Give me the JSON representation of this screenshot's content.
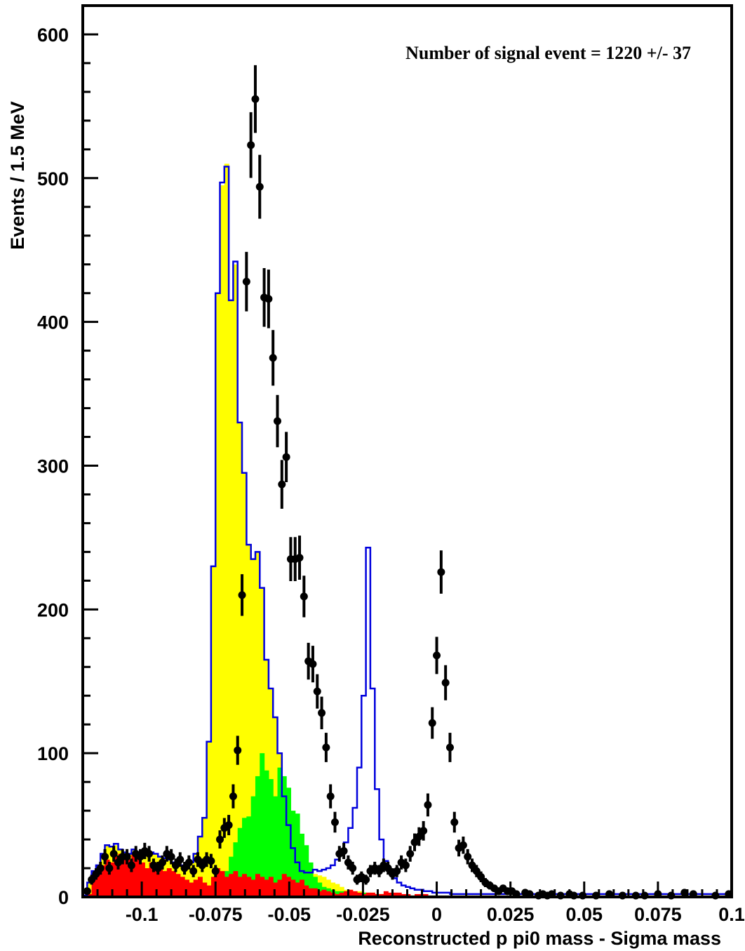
{
  "chart_data": {
    "type": "bar",
    "title": "",
    "xlabel": "Reconstructed p pi0 mass - Sigma mass",
    "ylabel": "Events / 1.5 MeV",
    "xlim": [
      -0.12,
      0.1
    ],
    "ylim": [
      0,
      620
    ],
    "x_ticks": [
      {
        "value": -0.1,
        "label": "-0.1"
      },
      {
        "value": -0.075,
        "label": "-0.075"
      },
      {
        "value": -0.05,
        "label": "-0.05"
      },
      {
        "value": -0.025,
        "label": "-0.025"
      },
      {
        "value": 0,
        "label": "0"
      },
      {
        "value": 0.025,
        "label": "0.025"
      },
      {
        "value": 0.05,
        "label": "0.05"
      },
      {
        "value": 0.075,
        "label": "0.075"
      },
      {
        "value": 0.1,
        "label": "0.1"
      }
    ],
    "y_ticks": [
      {
        "value": 0,
        "label": "0"
      },
      {
        "value": 100,
        "label": "100"
      },
      {
        "value": 200,
        "label": "200"
      },
      {
        "value": 300,
        "label": "300"
      },
      {
        "value": 400,
        "label": "400"
      },
      {
        "value": 500,
        "label": "500"
      },
      {
        "value": 600,
        "label": "600"
      }
    ],
    "annotation": "Number of signal event = 1220 +/- 37",
    "bin_width": 0.0015,
    "bin_start": -0.12,
    "colors": {
      "red": "#ff0000",
      "green": "#00ff00",
      "yellow": "#ffff00",
      "fit": "#0000dd",
      "data": "#000000"
    },
    "series": [
      {
        "key": "red",
        "values": [
          0,
          2,
          14,
          18,
          22,
          26,
          24,
          28,
          30,
          28,
          26,
          30,
          28,
          24,
          20,
          24,
          22,
          20,
          18,
          20,
          18,
          16,
          14,
          12,
          10,
          12,
          14,
          10,
          8,
          14,
          20,
          18,
          14,
          16,
          18,
          14,
          16,
          14,
          12,
          16,
          14,
          12,
          14,
          10,
          12,
          16,
          14,
          12,
          10,
          12,
          8,
          6,
          6,
          4,
          5,
          4,
          3,
          2,
          3,
          4,
          5,
          4,
          3,
          2,
          3,
          3,
          2,
          2,
          4,
          3,
          3,
          3,
          2,
          2,
          1,
          2,
          2,
          2,
          1,
          1,
          1,
          1,
          1,
          1,
          1,
          1,
          1,
          1,
          1,
          1,
          1,
          1,
          1,
          1,
          1,
          1,
          1,
          1,
          1,
          1,
          1,
          1,
          1,
          1,
          1,
          1,
          1,
          1,
          1,
          1,
          1,
          1,
          1,
          1,
          1,
          1,
          1,
          1,
          1,
          1,
          1,
          1,
          1,
          1,
          1,
          1,
          1,
          1,
          1,
          1,
          1,
          1,
          1,
          1,
          1,
          1,
          1,
          1,
          1,
          1,
          1,
          1,
          1,
          1,
          1,
          1,
          1
        ]
      },
      {
        "key": "green",
        "values": [
          0,
          0,
          0,
          0,
          0,
          0,
          0,
          0,
          0,
          0,
          0,
          0,
          0,
          0,
          0,
          0,
          0,
          0,
          0,
          0,
          0,
          0,
          0,
          0,
          0,
          0,
          0,
          0,
          2,
          4,
          6,
          10,
          18,
          28,
          38,
          48,
          55,
          56,
          70,
          84,
          100,
          88,
          82,
          70,
          90,
          84,
          76,
          60,
          58,
          44,
          36,
          24,
          14,
          10,
          7,
          6,
          5,
          4,
          4,
          4,
          3,
          3,
          3,
          3,
          2,
          2,
          2,
          2,
          2,
          2,
          1,
          1,
          1,
          1,
          1,
          1,
          1,
          1,
          1,
          1,
          1,
          1,
          1,
          1,
          1,
          1,
          1,
          1,
          1,
          1,
          1,
          1,
          1,
          1,
          1,
          1,
          1,
          1,
          1,
          1,
          1,
          1,
          1,
          1,
          1,
          1,
          1,
          1,
          1,
          1,
          1,
          1,
          1,
          1,
          1,
          1,
          1,
          1,
          1,
          1,
          1,
          1,
          1,
          1,
          1,
          1,
          1,
          1,
          1,
          1,
          1,
          1,
          1,
          1,
          1,
          1,
          1,
          1,
          1,
          1,
          1,
          1,
          1,
          1,
          1,
          1,
          1,
          1
        ]
      },
      {
        "key": "yellow",
        "values": [
          0,
          10,
          18,
          22,
          30,
          36,
          35,
          36,
          33,
          31,
          30,
          33,
          31,
          30,
          29,
          31,
          30,
          28,
          27,
          26,
          24,
          23,
          22,
          22,
          24,
          30,
          42,
          55,
          108,
          230,
          420,
          495,
          510,
          415,
          440,
          330,
          295,
          245,
          235,
          240,
          215,
          165,
          145,
          125,
          100,
          70,
          50,
          32,
          20,
          15,
          14,
          14,
          16,
          15,
          14,
          12,
          10,
          9,
          7,
          5,
          5,
          4,
          4,
          3,
          3,
          3,
          2,
          2,
          2,
          2,
          2,
          1,
          1,
          1,
          1,
          1,
          1,
          1,
          1,
          1,
          1,
          1,
          1,
          1,
          1,
          1,
          1,
          1,
          1,
          1,
          1,
          1,
          1,
          1,
          1,
          1,
          1,
          1,
          1,
          1,
          1,
          1,
          1,
          1,
          1,
          1,
          1,
          1,
          1,
          1,
          1,
          1,
          1,
          1,
          1,
          1,
          1,
          1,
          1,
          1,
          1,
          1,
          1,
          1,
          1,
          1,
          1,
          1,
          1,
          1,
          1,
          1,
          1,
          1,
          1,
          1,
          1,
          1,
          1,
          1,
          1,
          1,
          1,
          1,
          1,
          1
        ]
      },
      {
        "key": "fit",
        "values": [
          1,
          10,
          18,
          22,
          30,
          36,
          35,
          37,
          33,
          31,
          30,
          33,
          31,
          30,
          29,
          31,
          30,
          28,
          27,
          26,
          24,
          23,
          22,
          22,
          24,
          30,
          42,
          55,
          108,
          230,
          420,
          497,
          508,
          415,
          442,
          330,
          295,
          245,
          235,
          240,
          215,
          165,
          145,
          125,
          100,
          70,
          50,
          34,
          24,
          18,
          17,
          17,
          19,
          18,
          19,
          20,
          22,
          26,
          31,
          38,
          48,
          62,
          90,
          140,
          243,
          145,
          75,
          40,
          25,
          18,
          13,
          10,
          8,
          7,
          6,
          5,
          5,
          4,
          4,
          3,
          3,
          3,
          3,
          2,
          2,
          2,
          2,
          2,
          2,
          2,
          2,
          2,
          2,
          2,
          2,
          2,
          2,
          2,
          2,
          2,
          2,
          2,
          2,
          2,
          2,
          2,
          2,
          2,
          2,
          2,
          2,
          2,
          2,
          2,
          2,
          2,
          2,
          2,
          2,
          2,
          2,
          2,
          2,
          2,
          2,
          2,
          2,
          2,
          2,
          2,
          2,
          2,
          2,
          2,
          2,
          2,
          2,
          2,
          2,
          2,
          2,
          2,
          2,
          2,
          2,
          2,
          2,
          2
        ]
      }
    ],
    "data_points": [
      {
        "x": -0.1185,
        "y": 4
      },
      {
        "x": -0.117,
        "y": 12
      },
      {
        "x": -0.1155,
        "y": 16
      },
      {
        "x": -0.114,
        "y": 20
      },
      {
        "x": -0.1125,
        "y": 28
      },
      {
        "x": -0.111,
        "y": 20
      },
      {
        "x": -0.1095,
        "y": 30
      },
      {
        "x": -0.108,
        "y": 24
      },
      {
        "x": -0.1065,
        "y": 28
      },
      {
        "x": -0.105,
        "y": 28
      },
      {
        "x": -0.1035,
        "y": 22
      },
      {
        "x": -0.102,
        "y": 30
      },
      {
        "x": -0.1005,
        "y": 28
      },
      {
        "x": -0.099,
        "y": 32
      },
      {
        "x": -0.0975,
        "y": 30
      },
      {
        "x": -0.096,
        "y": 22
      },
      {
        "x": -0.0945,
        "y": 20
      },
      {
        "x": -0.093,
        "y": 24
      },
      {
        "x": -0.0915,
        "y": 30
      },
      {
        "x": -0.09,
        "y": 28
      },
      {
        "x": -0.0885,
        "y": 22
      },
      {
        "x": -0.087,
        "y": 26
      },
      {
        "x": -0.0855,
        "y": 20
      },
      {
        "x": -0.084,
        "y": 24
      },
      {
        "x": -0.0825,
        "y": 18
      },
      {
        "x": -0.081,
        "y": 26
      },
      {
        "x": -0.0795,
        "y": 22
      },
      {
        "x": -0.078,
        "y": 26
      },
      {
        "x": -0.0765,
        "y": 25
      },
      {
        "x": -0.075,
        "y": 18
      },
      {
        "x": -0.0735,
        "y": 40
      },
      {
        "x": -0.072,
        "y": 48
      },
      {
        "x": -0.0705,
        "y": 50
      },
      {
        "x": -0.069,
        "y": 70
      },
      {
        "x": -0.0675,
        "y": 102
      },
      {
        "x": -0.066,
        "y": 210
      },
      {
        "x": -0.0645,
        "y": 428
      },
      {
        "x": -0.063,
        "y": 523
      },
      {
        "x": -0.0615,
        "y": 555
      },
      {
        "x": -0.06,
        "y": 494
      },
      {
        "x": -0.0585,
        "y": 417
      },
      {
        "x": -0.057,
        "y": 416
      },
      {
        "x": -0.0555,
        "y": 375
      },
      {
        "x": -0.054,
        "y": 331
      },
      {
        "x": -0.0525,
        "y": 287
      },
      {
        "x": -0.051,
        "y": 306
      },
      {
        "x": -0.0495,
        "y": 235
      },
      {
        "x": -0.048,
        "y": 235
      },
      {
        "x": -0.0465,
        "y": 236
      },
      {
        "x": -0.045,
        "y": 209
      },
      {
        "x": -0.0435,
        "y": 164
      },
      {
        "x": -0.042,
        "y": 162
      },
      {
        "x": -0.0405,
        "y": 143
      },
      {
        "x": -0.039,
        "y": 128
      },
      {
        "x": -0.0375,
        "y": 104
      },
      {
        "x": -0.036,
        "y": 70
      },
      {
        "x": -0.0345,
        "y": 52
      },
      {
        "x": -0.033,
        "y": 30
      },
      {
        "x": -0.0315,
        "y": 32
      },
      {
        "x": -0.03,
        "y": 24
      },
      {
        "x": -0.0285,
        "y": 20
      },
      {
        "x": -0.027,
        "y": 12
      },
      {
        "x": -0.0255,
        "y": 14
      },
      {
        "x": -0.024,
        "y": 12
      },
      {
        "x": -0.0225,
        "y": 18
      },
      {
        "x": -0.021,
        "y": 20
      },
      {
        "x": -0.0195,
        "y": 18
      },
      {
        "x": -0.018,
        "y": 22
      },
      {
        "x": -0.0165,
        "y": 20
      },
      {
        "x": -0.015,
        "y": 16
      },
      {
        "x": -0.0135,
        "y": 18
      },
      {
        "x": -0.012,
        "y": 24
      },
      {
        "x": -0.0105,
        "y": 22
      },
      {
        "x": -0.009,
        "y": 30
      },
      {
        "x": -0.0075,
        "y": 38
      },
      {
        "x": -0.006,
        "y": 42
      },
      {
        "x": -0.0045,
        "y": 46
      },
      {
        "x": -0.003,
        "y": 64
      },
      {
        "x": -0.0015,
        "y": 121
      },
      {
        "x": 0,
        "y": 168
      },
      {
        "x": 0.0015,
        "y": 226
      },
      {
        "x": 0.003,
        "y": 149
      },
      {
        "x": 0.0045,
        "y": 104
      },
      {
        "x": 0.006,
        "y": 52
      },
      {
        "x": 0.0075,
        "y": 34
      },
      {
        "x": 0.009,
        "y": 36
      },
      {
        "x": 0.0105,
        "y": 28
      },
      {
        "x": 0.012,
        "y": 22
      },
      {
        "x": 0.0135,
        "y": 18
      },
      {
        "x": 0.015,
        "y": 14
      },
      {
        "x": 0.0165,
        "y": 10
      },
      {
        "x": 0.018,
        "y": 8
      },
      {
        "x": 0.0195,
        "y": 6
      },
      {
        "x": 0.021,
        "y": 4
      },
      {
        "x": 0.0225,
        "y": 6
      },
      {
        "x": 0.024,
        "y": 4
      },
      {
        "x": 0.0255,
        "y": 4
      },
      {
        "x": 0.027,
        "y": 2
      },
      {
        "x": 0.03,
        "y": 3
      },
      {
        "x": 0.0315,
        "y": 2
      },
      {
        "x": 0.0345,
        "y": 1
      },
      {
        "x": 0.036,
        "y": 2
      },
      {
        "x": 0.0375,
        "y": 1
      },
      {
        "x": 0.039,
        "y": 2
      },
      {
        "x": 0.042,
        "y": 1
      },
      {
        "x": 0.045,
        "y": 2
      },
      {
        "x": 0.0465,
        "y": 1
      },
      {
        "x": 0.0495,
        "y": 1
      },
      {
        "x": 0.054,
        "y": 1
      },
      {
        "x": 0.0585,
        "y": 2
      },
      {
        "x": 0.063,
        "y": 1
      },
      {
        "x": 0.0675,
        "y": 1
      },
      {
        "x": 0.0705,
        "y": 1
      },
      {
        "x": 0.075,
        "y": 2
      },
      {
        "x": 0.0795,
        "y": 1
      },
      {
        "x": 0.084,
        "y": 3
      },
      {
        "x": 0.087,
        "y": 2
      },
      {
        "x": 0.0945,
        "y": 1
      },
      {
        "x": 0.099,
        "y": 2
      }
    ]
  }
}
